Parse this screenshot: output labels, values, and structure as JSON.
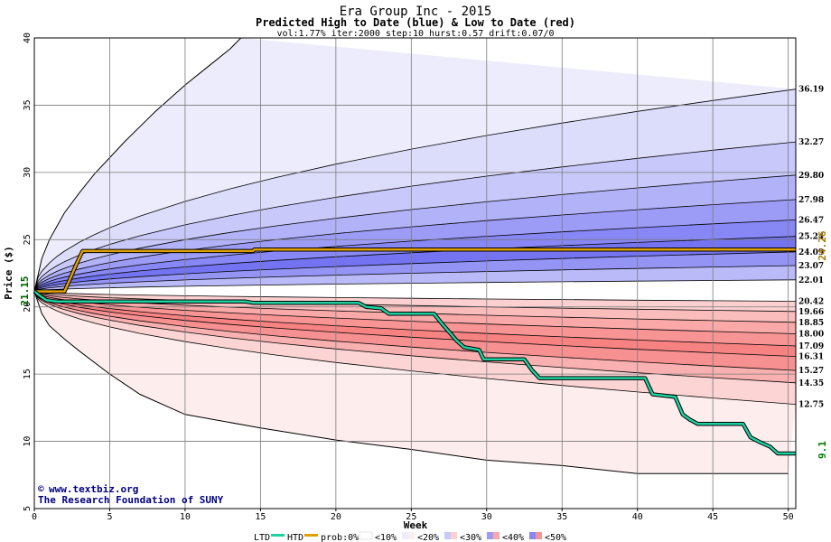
{
  "chart_data": {
    "type": "area",
    "title": "Era Group Inc - 2015",
    "subtitle": "Predicted High to Date (blue) &  Low to Date (red)",
    "params": "vol:1.77% iter:2000 step:10 hurst:0.57 drift:0.07/0",
    "xlabel": "Week",
    "ylabel": "Price ($)",
    "xlim": [
      0,
      50.5
    ],
    "ylim": [
      5,
      40
    ],
    "xticks": [
      "0",
      "5",
      "10",
      "15",
      "20",
      "25",
      "30",
      "35",
      "40",
      "45",
      "50"
    ],
    "yticks": [
      "5",
      "10",
      "15",
      "20",
      "25",
      "30",
      "35",
      "40"
    ],
    "grid": true,
    "start_price": 21.15,
    "start_label": "21.15",
    "high_label": "24.26",
    "low_label": "9.1",
    "percentile_curves": [
      {
        "end": 36.19,
        "label": "36.19"
      },
      {
        "end": 32.27,
        "label": "32.27"
      },
      {
        "end": 29.8,
        "label": "29.80"
      },
      {
        "end": 27.98,
        "label": "27.98"
      },
      {
        "end": 26.47,
        "label": "26.47"
      },
      {
        "end": 25.24,
        "label": "25.24"
      },
      {
        "end": 24.09,
        "label": "24.09"
      },
      {
        "end": 23.07,
        "label": "23.07"
      },
      {
        "end": 22.01,
        "label": "22.01"
      },
      {
        "end": 20.42,
        "label": "20.42"
      },
      {
        "end": 19.66,
        "label": "19.66"
      },
      {
        "end": 18.85,
        "label": "18.85"
      },
      {
        "end": 18.0,
        "label": "18.00"
      },
      {
        "end": 17.09,
        "label": "17.09"
      },
      {
        "end": 16.31,
        "label": "16.31"
      },
      {
        "end": 15.27,
        "label": "15.27"
      },
      {
        "end": 14.35,
        "label": "14.35"
      },
      {
        "end": 12.75,
        "label": "12.75"
      }
    ],
    "band_colors": {
      "blue": [
        "#ececfc",
        "#dcdcfb",
        "#c8c8fa",
        "#b2b2f9",
        "#9c9cf7",
        "#8787f5",
        "#7474f3",
        "#9494f5",
        "#babaf9"
      ],
      "red": [
        "#fde2e2",
        "#fcd0d0",
        "#fbbcbc",
        "#faa8a8",
        "#f89494",
        "#f78282",
        "#f79090",
        "#f9b0b0",
        "#fcd4d4",
        "#feeded"
      ]
    },
    "outer_high": [
      [
        0,
        21.15
      ],
      [
        0.5,
        23.6
      ],
      [
        1,
        25.0
      ],
      [
        2,
        27.0
      ],
      [
        3,
        28.5
      ],
      [
        4,
        29.9
      ],
      [
        5,
        31.1
      ],
      [
        6,
        32.3
      ],
      [
        7,
        33.4
      ],
      [
        8,
        34.5
      ],
      [
        9,
        35.5
      ],
      [
        10,
        36.5
      ],
      [
        11,
        37.4
      ],
      [
        12,
        38.3
      ],
      [
        13,
        39.2
      ],
      [
        13.7,
        40
      ]
    ],
    "outer_low": [
      [
        0,
        21.15
      ],
      [
        0.5,
        19.5
      ],
      [
        1,
        18.6
      ],
      [
        2,
        17.6
      ],
      [
        3,
        16.7
      ],
      [
        5,
        15.0
      ],
      [
        7,
        13.5
      ],
      [
        10,
        12.0
      ],
      [
        15,
        11.0
      ],
      [
        20,
        10.1
      ],
      [
        25,
        9.4
      ],
      [
        30,
        8.6
      ],
      [
        35,
        8.2
      ],
      [
        40,
        7.6
      ],
      [
        50,
        7.6
      ]
    ],
    "htd_series": {
      "name": "HTD",
      "color": "#e0a000",
      "points": [
        [
          0,
          21.15
        ],
        [
          2.0,
          21.15
        ],
        [
          2.3,
          21.9
        ],
        [
          2.8,
          23.2
        ],
        [
          3.2,
          24.15
        ],
        [
          14.5,
          24.15
        ],
        [
          14.6,
          24.26
        ],
        [
          50.5,
          24.26
        ]
      ]
    },
    "ltd_series": {
      "name": "LTD",
      "color": "#20d0a0",
      "points": [
        [
          0,
          21.15
        ],
        [
          0.4,
          20.8
        ],
        [
          0.8,
          20.5
        ],
        [
          1.5,
          20.4
        ],
        [
          14.0,
          20.4
        ],
        [
          14.5,
          20.3
        ],
        [
          21.5,
          20.3
        ],
        [
          22.0,
          20.0
        ],
        [
          23.0,
          19.9
        ],
        [
          23.5,
          19.5
        ],
        [
          26.5,
          19.5
        ],
        [
          27.0,
          18.8
        ],
        [
          28.0,
          17.5
        ],
        [
          28.5,
          17.0
        ],
        [
          29.5,
          16.8
        ],
        [
          29.8,
          16.1
        ],
        [
          32.5,
          16.1
        ],
        [
          33.0,
          15.3
        ],
        [
          33.5,
          14.7
        ],
        [
          40.5,
          14.7
        ],
        [
          41.0,
          13.5
        ],
        [
          42.5,
          13.3
        ],
        [
          43.0,
          12.0
        ],
        [
          43.5,
          11.6
        ],
        [
          44.0,
          11.3
        ],
        [
          47.0,
          11.3
        ],
        [
          47.5,
          10.3
        ],
        [
          48.2,
          9.9
        ],
        [
          48.8,
          9.6
        ],
        [
          49.3,
          9.1
        ],
        [
          50.5,
          9.1
        ]
      ]
    }
  },
  "credit": {
    "copyright": "www.textbiz.org",
    "org": "The Research Foundation of SUNY"
  },
  "legend": {
    "ltd": "LTD",
    "htd": "HTD",
    "prob": "prob:0%",
    "lt10": "<10%",
    "lt20": "<20%",
    "lt30": "<30%",
    "lt40": "<40%",
    "lt50": "<50%"
  }
}
